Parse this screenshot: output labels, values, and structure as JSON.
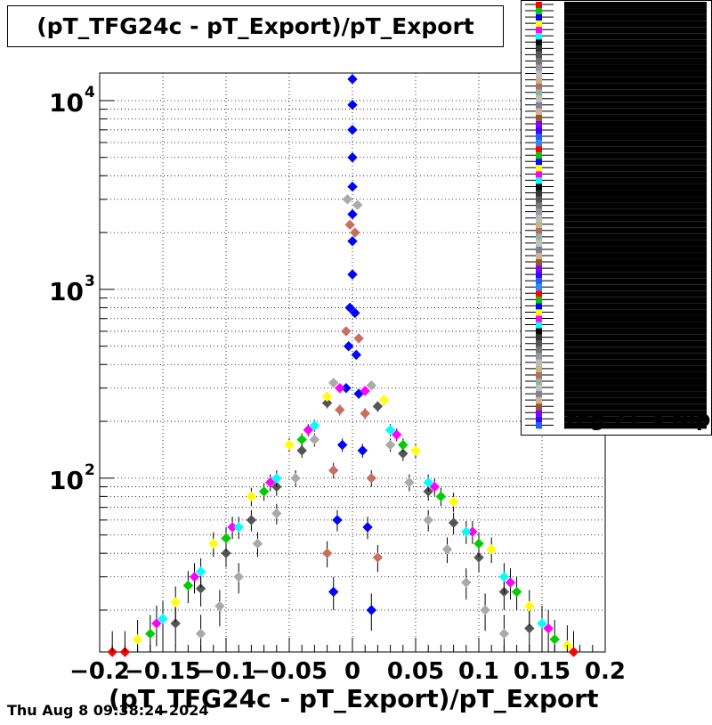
{
  "chart_data": {
    "type": "scatter",
    "title": "(pT_TFG24c - pT_Export)/pT_Export",
    "xlabel": "(pT_TFG24c - pT_Export)/pT_Export",
    "ylabel": "",
    "x_ticks": [
      "−0.2",
      "−0.15",
      "−0.1",
      "−0.05",
      "0",
      "0.05",
      "0.1",
      "0.15",
      "0.2"
    ],
    "x_tick_values": [
      -0.2,
      -0.15,
      -0.1,
      -0.05,
      0,
      0.05,
      0.1,
      0.15,
      0.2
    ],
    "y_ticks": [
      {
        "base": "10",
        "exp": "2",
        "value": 100
      },
      {
        "base": "10",
        "exp": "3",
        "value": 1000
      },
      {
        "base": "10",
        "exp": "4",
        "value": 10000
      }
    ],
    "xlim": [
      -0.2,
      0.2
    ],
    "ylim": [
      12,
      14000
    ],
    "y_scale": "log",
    "grid": true,
    "legend_placement": "top-right",
    "legend_visible_text": "reg 71 < Nip",
    "series_colors": [
      "#ff0000",
      "#00cc00",
      "#0000ff",
      "#ffff00",
      "#ff00ff",
      "#00ffff",
      "#000000",
      "#333333",
      "#555555",
      "#777777",
      "#999999",
      "#bbbbbb",
      "#c8b48c",
      "#b07060",
      "#8fb4a0",
      "#c0c0c0",
      "#8080a0",
      "#d2b48c",
      "#a0522d",
      "#7f00ff",
      "#4000ff",
      "#2060ff",
      "#1e90ff"
    ],
    "series": [
      {
        "color": "#0000ff",
        "x": [
          0.0,
          0.0,
          0.0,
          0.0,
          0.0,
          0.0,
          0.0,
          0.0,
          -0.002,
          0.002,
          -0.003,
          0.003,
          -0.005,
          0.005,
          -0.008,
          0.008,
          -0.012,
          0.012,
          -0.015,
          0.015
        ],
        "y": [
          13000,
          9500,
          7000,
          5000,
          3500,
          2500,
          1800,
          1200,
          800,
          750,
          500,
          450,
          300,
          280,
          150,
          140,
          60,
          55,
          25,
          20
        ]
      },
      {
        "color": "#aaaaaa",
        "x": [
          -0.004,
          0.004,
          -0.015,
          0.015,
          -0.03,
          0.03,
          -0.045,
          0.045,
          -0.06,
          0.06,
          -0.075,
          0.075,
          -0.09,
          0.09,
          -0.105,
          0.105,
          -0.12,
          0.12
        ],
        "y": [
          3000,
          2800,
          320,
          310,
          160,
          150,
          100,
          95,
          65,
          60,
          45,
          42,
          30,
          28,
          21,
          20,
          15,
          15
        ]
      },
      {
        "color": "#555555",
        "x": [
          -0.02,
          0.02,
          -0.04,
          0.04,
          -0.06,
          0.06,
          -0.08,
          0.08,
          -0.1,
          0.1,
          -0.12,
          0.12,
          -0.14,
          0.14
        ],
        "y": [
          250,
          240,
          140,
          135,
          90,
          85,
          60,
          58,
          40,
          38,
          26,
          25,
          17,
          16
        ]
      },
      {
        "color": "#ffff00",
        "x": [
          -0.02,
          0.025,
          -0.05,
          0.05,
          -0.08,
          0.08,
          -0.11,
          0.11,
          -0.14,
          0.14,
          -0.17,
          0.17
        ],
        "y": [
          270,
          260,
          150,
          140,
          80,
          75,
          45,
          42,
          22,
          21,
          14,
          13
        ]
      },
      {
        "color": "#ff00ff",
        "x": [
          -0.01,
          0.01,
          -0.035,
          0.035,
          -0.065,
          0.065,
          -0.095,
          0.095,
          -0.125,
          0.125,
          -0.155,
          0.155
        ],
        "y": [
          300,
          290,
          180,
          170,
          95,
          90,
          55,
          52,
          30,
          28,
          17,
          16
        ]
      },
      {
        "color": "#00ffff",
        "x": [
          -0.03,
          0.03,
          -0.06,
          0.06,
          -0.09,
          0.09,
          -0.12,
          0.12,
          -0.15,
          0.15
        ],
        "y": [
          190,
          180,
          100,
          95,
          55,
          52,
          32,
          30,
          18,
          17
        ]
      },
      {
        "color": "#00cc00",
        "x": [
          -0.04,
          0.04,
          -0.07,
          0.07,
          -0.1,
          0.1,
          -0.13,
          0.13,
          -0.16,
          0.16
        ],
        "y": [
          160,
          150,
          85,
          80,
          48,
          45,
          27,
          25,
          15,
          14
        ]
      },
      {
        "color": "#c87060",
        "x": [
          -0.002,
          0.002,
          -0.005,
          0.005,
          -0.01,
          0.01,
          -0.015,
          0.015,
          -0.02,
          0.02
        ],
        "y": [
          2200,
          2000,
          600,
          550,
          230,
          220,
          110,
          100,
          40,
          38
        ]
      },
      {
        "color": "#ff0000",
        "x": [
          -0.19,
          -0.18,
          0.175
        ],
        "y": [
          12,
          12,
          12
        ]
      }
    ]
  },
  "footer": {
    "timestamp": "Thu Aug  8 09:38:24 2024"
  }
}
